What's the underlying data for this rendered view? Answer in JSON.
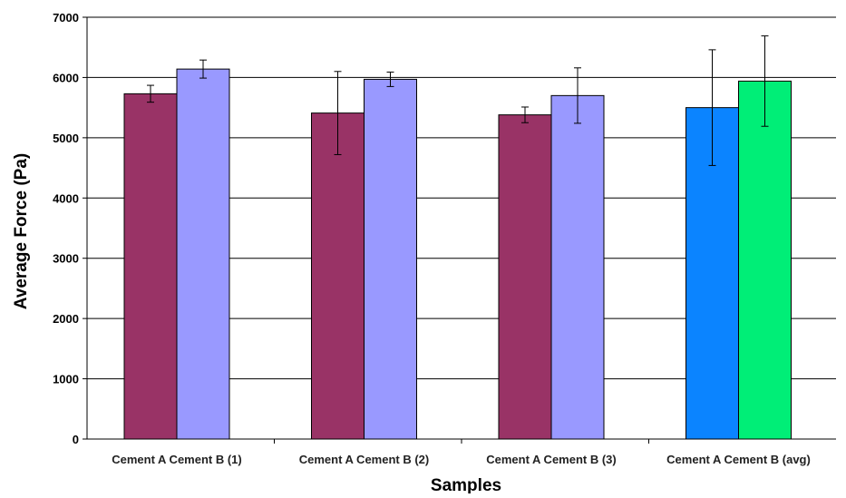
{
  "chart_data": {
    "type": "bar",
    "title": "",
    "xlabel": "Samples",
    "ylabel": "Average Force (Pa)",
    "ylim": [
      0,
      7000
    ],
    "yticks": [
      0,
      1000,
      2000,
      3000,
      4000,
      5000,
      6000,
      7000
    ],
    "ytick_labels": [
      "0",
      "1000",
      "2000",
      "3000",
      "4000",
      "5000",
      "6000",
      "7000"
    ],
    "grid": true,
    "legend": "none",
    "categories": [
      "Cement A Cement B (1)",
      "Cement A Cement B (2)",
      "Cement A Cement B (3)",
      "Cement A Cement B (avg)"
    ],
    "groups": [
      {
        "category": "Cement A Cement B (1)",
        "bars": [
          {
            "value": 5730,
            "error": 140,
            "color": "#993366"
          },
          {
            "value": 6140,
            "error": 150,
            "color": "#9999ff"
          }
        ]
      },
      {
        "category": "Cement A Cement B (2)",
        "bars": [
          {
            "value": 5410,
            "error": 690,
            "color": "#993366"
          },
          {
            "value": 5970,
            "error": 120,
            "color": "#9999ff"
          }
        ]
      },
      {
        "category": "Cement A Cement B (3)",
        "bars": [
          {
            "value": 5380,
            "error": 130,
            "color": "#993366"
          },
          {
            "value": 5700,
            "error": 460,
            "color": "#9999ff"
          }
        ]
      },
      {
        "category": "Cement A Cement B (avg)",
        "bars": [
          {
            "value": 5500,
            "error": 960,
            "color": "#0b84ff"
          },
          {
            "value": 5940,
            "error": 750,
            "color": "#00ee77"
          }
        ]
      }
    ]
  }
}
